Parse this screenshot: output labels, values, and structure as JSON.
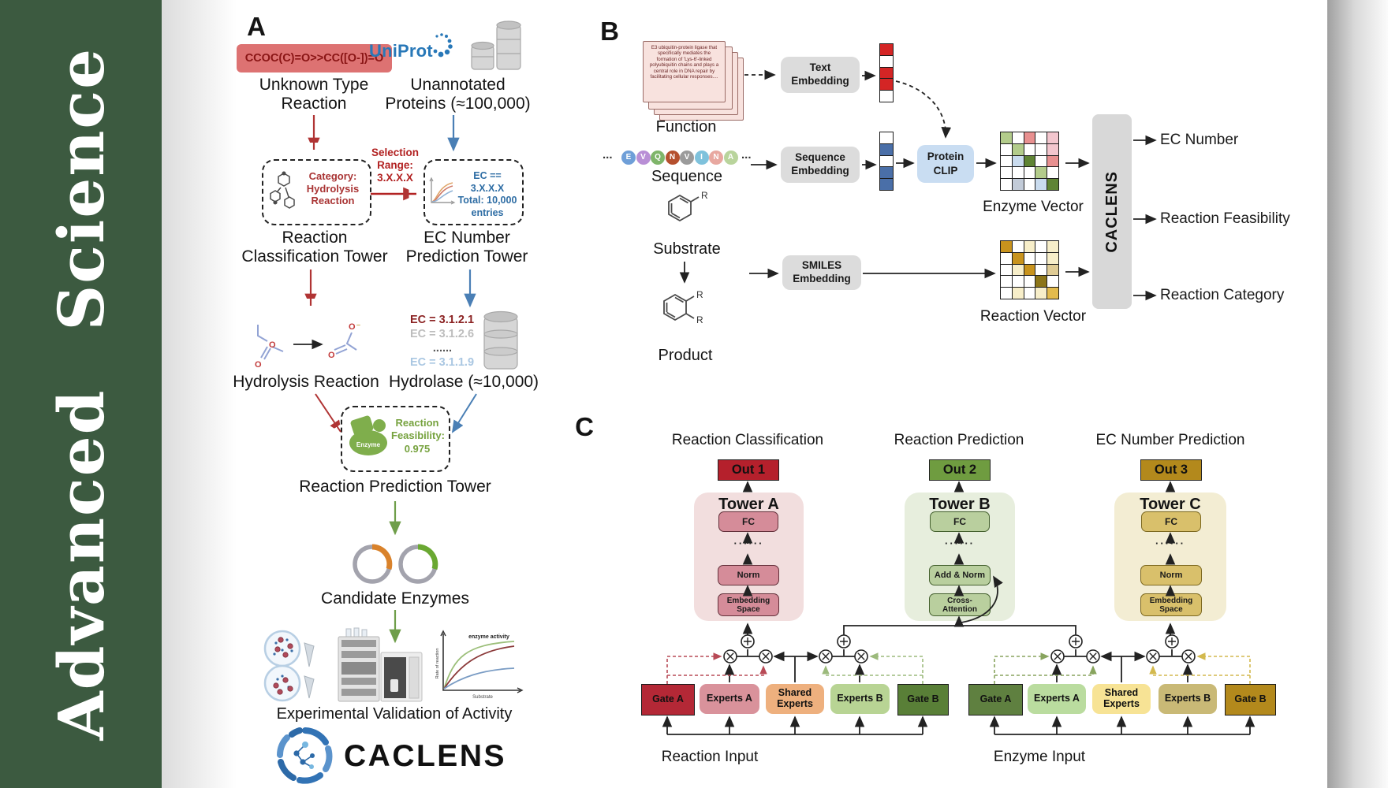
{
  "journal": {
    "name": "Advanced Science"
  },
  "brand": {
    "name": "CACLENS"
  },
  "colors": {
    "sidebar_green": "#3c5a40",
    "smiles_red_bg": "#dd7272",
    "arrow_red": "#b03434",
    "arrow_blue": "#4a7fb5",
    "arrow_green": "#6f9e4a",
    "uniprot_blue": "#2878b8",
    "enzyme_green": "#76a23e",
    "out1": "#b5202c",
    "out2": "#6f9c40",
    "out3": "#b3891c"
  },
  "panelA": {
    "label": "A",
    "smiles": "CCOC(C)=O>>CC([O-])=O",
    "unknown_label": "Unknown Type\nReaction",
    "uniprot": "UniProt",
    "unannotated_label": "Unannotated\nProteins (≈100,000)",
    "category_label": "Category:\nHydrolysis\nReaction",
    "selection_label": "Selection\nRange:\n3.X.X.X",
    "ec_filter_label": "EC == 3.X.X.X\nTotal: 10,000\nentries",
    "classification_tower": "Reaction\nClassification Tower",
    "ec_tower": "EC Number\nPrediction Tower",
    "ec_list": [
      "EC = 3.1.2.1",
      "EC = 3.1.2.6",
      "......",
      "EC = 3.1.1.9"
    ],
    "hydrolysis_label": "Hydrolysis Reaction",
    "hydrolase_label": "Hydrolase (≈10,000)",
    "enzyme_badge": "Enzyme",
    "feasibility_label": "Reaction\nFeasibility:\n0.975",
    "prediction_tower": "Reaction Prediction Tower",
    "candidate_label": "Candidate Enzymes",
    "validation_label": "Experimental Validation of Activity",
    "graph": {
      "ylabel": "Rate of reaction",
      "xlabel": "Substrate",
      "annotation": "enzyme activity"
    }
  },
  "panelB": {
    "label": "B",
    "function_text": "E3 ubiquitin-protein ligase that specifically mediates the formation of 'Lys-6'-linked polyubiquitin chains and plays a central role in DNA repair by facilitating cellular responses....",
    "function_label": "Function",
    "ellipsis": "...",
    "sequence_label": "Sequence",
    "substrate_label": "Substrate",
    "product_label": "Product",
    "r_label": "R",
    "residues": [
      {
        "letter": "E",
        "color": "#6f9fd8"
      },
      {
        "letter": "V",
        "color": "#b98fd6"
      },
      {
        "letter": "Q",
        "color": "#7fb56a"
      },
      {
        "letter": "N",
        "color": "#b5502e"
      },
      {
        "letter": "V",
        "color": "#9b9b9b"
      },
      {
        "letter": "I",
        "color": "#7fc2dc"
      },
      {
        "letter": "N",
        "color": "#e8a8a0"
      },
      {
        "letter": "A",
        "color": "#b9d49c"
      }
    ],
    "text_embedding": "Text\nEmbedding",
    "sequence_embedding": "Sequence\nEmbedding",
    "smiles_embedding": "SMILES\nEmbedding",
    "protein_clip": "Protein\nCLIP",
    "enzyme_vector_label": "Enzyme Vector",
    "reaction_vector_label": "Reaction Vector",
    "caclens_bar": "CACLENS",
    "outputs": [
      "EC Number",
      "Reaction Feasibility",
      "Reaction Category"
    ],
    "palette": {
      "w": "#ffffff",
      "r": "#d42525",
      "u": "#4a6fa8",
      "g": "#b3cc8b",
      "G": "#5f8434",
      "s": "#e89090",
      "p": "#f3c6ce",
      "b": "#c9dbee",
      "y": "#c2cbd8",
      "d": "#c8931d",
      "c": "#f7eec9",
      "t": "#e0cc95",
      "o": "#8c7518",
      "a": "#e3bb4d"
    },
    "text_vector": [
      [
        "r"
      ],
      [
        "w"
      ],
      [
        "r"
      ],
      [
        "r"
      ],
      [
        "w"
      ]
    ],
    "seq_vector": [
      [
        "w"
      ],
      [
        "u"
      ],
      [
        "w"
      ],
      [
        "u"
      ],
      [
        "u"
      ]
    ],
    "enzyme_matrix": [
      [
        "g",
        "w",
        "s",
        "w",
        "p"
      ],
      [
        "w",
        "g",
        "w",
        "w",
        "p"
      ],
      [
        "w",
        "b",
        "G",
        "w",
        "s"
      ],
      [
        "w",
        "w",
        "w",
        "g",
        "w"
      ],
      [
        "w",
        "y",
        "w",
        "b",
        "G"
      ]
    ],
    "reaction_matrix": [
      [
        "d",
        "w",
        "c",
        "w",
        "c"
      ],
      [
        "w",
        "d",
        "w",
        "w",
        "c"
      ],
      [
        "w",
        "c",
        "d",
        "w",
        "t"
      ],
      [
        "w",
        "w",
        "w",
        "o",
        "w"
      ],
      [
        "w",
        "c",
        "w",
        "c",
        "a"
      ]
    ]
  },
  "panelC": {
    "label": "C",
    "headers": [
      "Reaction Classification",
      "Reaction Prediction",
      "EC Number Prediction"
    ],
    "outs": [
      "Out 1",
      "Out 2",
      "Out 3"
    ],
    "dots": "······",
    "towers": [
      {
        "title": "Tower A",
        "fc": "FC",
        "mid": "Norm",
        "bottom": "Embedding\nSpace"
      },
      {
        "title": "Tower B",
        "fc": "FC",
        "mid": "Add & Norm",
        "bottom": "Cross-\nAttention"
      },
      {
        "title": "Tower C",
        "fc": "FC",
        "mid": "Norm",
        "bottom": "Embedding\nSpace"
      }
    ],
    "moe_reaction": [
      "Gate A",
      "Experts A",
      "Shared\nExperts",
      "Experts B",
      "Gate B"
    ],
    "moe_enzyme": [
      "Gate A",
      "Experts A",
      "Shared\nExperts",
      "Experts B",
      "Gate B"
    ],
    "inputs": [
      "Reaction Input",
      "Enzyme Input"
    ]
  }
}
